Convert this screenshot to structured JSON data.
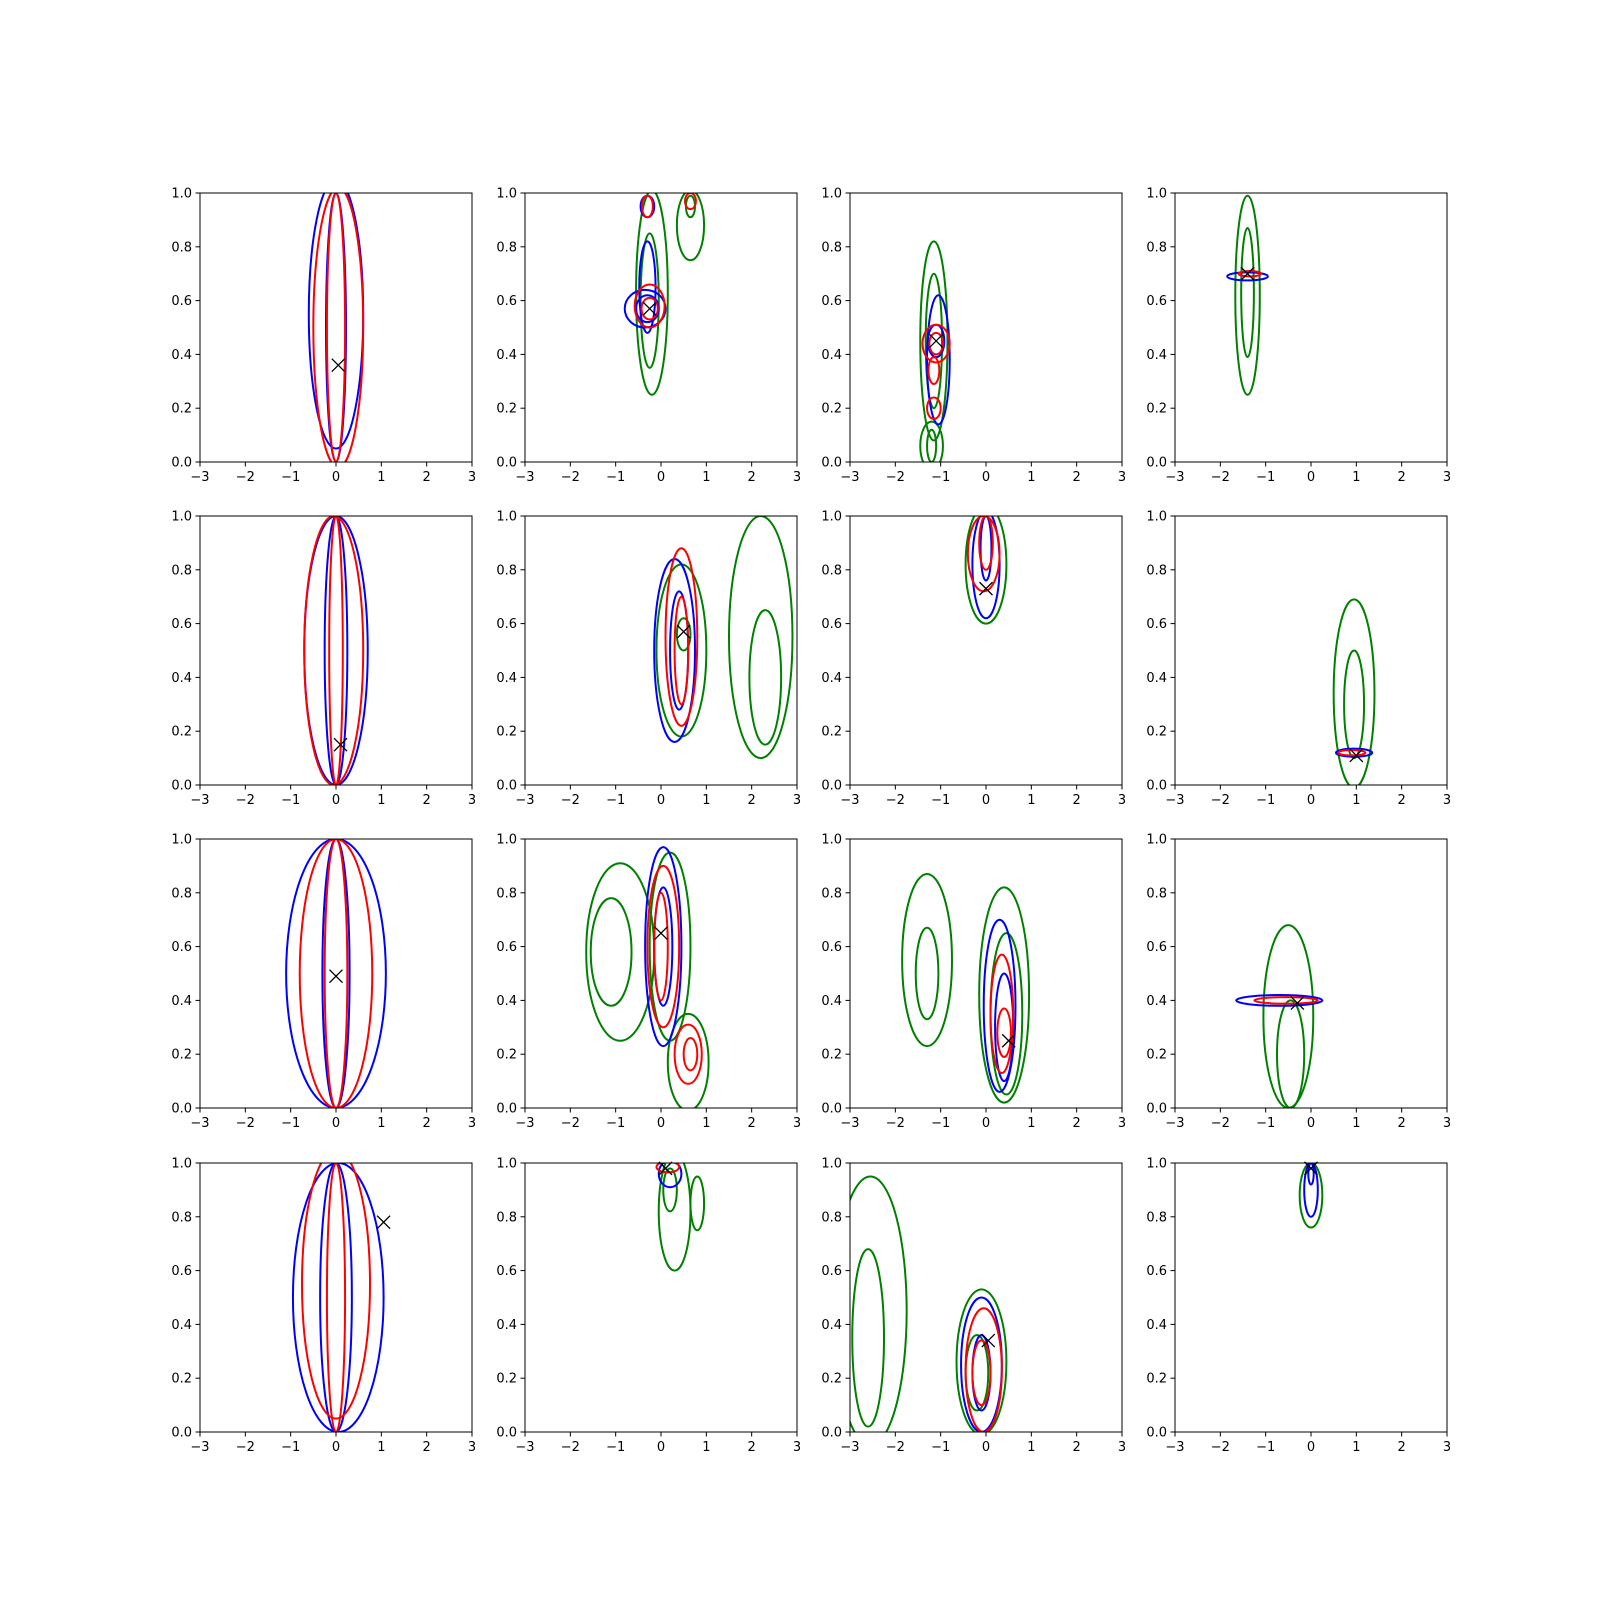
{
  "colors": {
    "blue": "#0000ff",
    "red": "#ff0000",
    "green": "#008000",
    "marker": "#000000",
    "frame": "#000000"
  },
  "chart_data": {
    "type": "contour_grid",
    "rows": 4,
    "cols": 4,
    "xlim": [
      -3,
      3
    ],
    "ylim": [
      0,
      1
    ],
    "xticks": [
      "−3",
      "−2",
      "−1",
      "0",
      "1",
      "2",
      "3"
    ],
    "yticks": [
      "0.0",
      "0.2",
      "0.4",
      "0.6",
      "0.8",
      "1.0"
    ],
    "marker_symbol": "x",
    "panels": [
      {
        "marker": [
          0.05,
          0.36
        ],
        "contours": [
          {
            "color": "blue",
            "cx": 0.0,
            "cy": 0.55,
            "rx": 0.6,
            "ry": 0.5
          },
          {
            "color": "blue",
            "cx": 0.0,
            "cy": 0.5,
            "rx": 0.22,
            "ry": 0.5
          },
          {
            "color": "red",
            "cx": 0.05,
            "cy": 0.5,
            "rx": 0.55,
            "ry": 0.52
          },
          {
            "color": "red",
            "cx": 0.0,
            "cy": 0.5,
            "rx": 0.2,
            "ry": 0.5
          }
        ]
      },
      {
        "marker": [
          -0.25,
          0.57
        ],
        "contours": [
          {
            "color": "green",
            "cx": -0.2,
            "cy": 0.63,
            "rx": 0.35,
            "ry": 0.38
          },
          {
            "color": "green",
            "cx": -0.25,
            "cy": 0.6,
            "rx": 0.2,
            "ry": 0.25
          },
          {
            "color": "green",
            "cx": 0.65,
            "cy": 0.88,
            "rx": 0.3,
            "ry": 0.13
          },
          {
            "color": "green",
            "cx": 0.65,
            "cy": 0.95,
            "rx": 0.1,
            "ry": 0.04
          },
          {
            "color": "blue",
            "cx": -0.35,
            "cy": 0.57,
            "rx": 0.45,
            "ry": 0.07
          },
          {
            "color": "blue",
            "cx": -0.3,
            "cy": 0.65,
            "rx": 0.18,
            "ry": 0.17
          },
          {
            "color": "blue",
            "cx": -0.3,
            "cy": 0.57,
            "rx": 0.25,
            "ry": 0.05
          },
          {
            "color": "blue",
            "cx": -0.3,
            "cy": 0.95,
            "rx": 0.15,
            "ry": 0.04
          },
          {
            "color": "red",
            "cx": -0.25,
            "cy": 0.58,
            "rx": 0.33,
            "ry": 0.08
          },
          {
            "color": "red",
            "cx": -0.25,
            "cy": 0.57,
            "rx": 0.18,
            "ry": 0.04
          },
          {
            "color": "red",
            "cx": -0.3,
            "cy": 0.95,
            "rx": 0.12,
            "ry": 0.04
          },
          {
            "color": "red",
            "cx": 0.65,
            "cy": 0.97,
            "rx": 0.12,
            "ry": 0.03
          }
        ]
      },
      {
        "marker": [
          -1.1,
          0.45
        ],
        "contours": [
          {
            "color": "green",
            "cx": -1.15,
            "cy": 0.45,
            "rx": 0.3,
            "ry": 0.37
          },
          {
            "color": "green",
            "cx": -1.15,
            "cy": 0.45,
            "rx": 0.18,
            "ry": 0.25
          },
          {
            "color": "green",
            "cx": -1.2,
            "cy": 0.06,
            "rx": 0.25,
            "ry": 0.09
          },
          {
            "color": "green",
            "cx": -1.2,
            "cy": 0.06,
            "rx": 0.1,
            "ry": 0.06
          },
          {
            "color": "blue",
            "cx": -1.05,
            "cy": 0.38,
            "rx": 0.25,
            "ry": 0.24
          },
          {
            "color": "blue",
            "cx": -1.1,
            "cy": 0.45,
            "rx": 0.18,
            "ry": 0.06
          },
          {
            "color": "red",
            "cx": -1.1,
            "cy": 0.44,
            "rx": 0.3,
            "ry": 0.07
          },
          {
            "color": "red",
            "cx": -1.1,
            "cy": 0.44,
            "rx": 0.15,
            "ry": 0.04
          },
          {
            "color": "red",
            "cx": -1.15,
            "cy": 0.34,
            "rx": 0.12,
            "ry": 0.05
          },
          {
            "color": "red",
            "cx": -1.15,
            "cy": 0.2,
            "rx": 0.15,
            "ry": 0.04
          }
        ]
      },
      {
        "marker": [
          -1.4,
          0.7
        ],
        "contours": [
          {
            "color": "green",
            "cx": -1.4,
            "cy": 0.62,
            "rx": 0.27,
            "ry": 0.37
          },
          {
            "color": "green",
            "cx": -1.4,
            "cy": 0.63,
            "rx": 0.14,
            "ry": 0.24
          },
          {
            "color": "blue",
            "cx": -1.4,
            "cy": 0.69,
            "rx": 0.45,
            "ry": 0.015
          },
          {
            "color": "red",
            "cx": -1.35,
            "cy": 0.7,
            "rx": 0.25,
            "ry": 0.01
          }
        ]
      },
      {
        "marker": [
          0.1,
          0.15
        ],
        "contours": [
          {
            "color": "blue",
            "cx": 0.0,
            "cy": 0.5,
            "rx": 0.7,
            "ry": 0.5
          },
          {
            "color": "blue",
            "cx": 0.0,
            "cy": 0.5,
            "rx": 0.25,
            "ry": 0.5
          },
          {
            "color": "red",
            "cx": -0.05,
            "cy": 0.5,
            "rx": 0.65,
            "ry": 0.5
          },
          {
            "color": "red",
            "cx": 0.0,
            "cy": 0.5,
            "rx": 0.15,
            "ry": 0.5
          }
        ]
      },
      {
        "marker": [
          0.5,
          0.57
        ],
        "contours": [
          {
            "color": "green",
            "cx": 0.45,
            "cy": 0.5,
            "rx": 0.55,
            "ry": 0.32
          },
          {
            "color": "green",
            "cx": 0.5,
            "cy": 0.56,
            "rx": 0.15,
            "ry": 0.06
          },
          {
            "color": "green",
            "cx": 2.2,
            "cy": 0.55,
            "rx": 0.7,
            "ry": 0.45
          },
          {
            "color": "green",
            "cx": 2.3,
            "cy": 0.4,
            "rx": 0.35,
            "ry": 0.25
          },
          {
            "color": "blue",
            "cx": 0.3,
            "cy": 0.5,
            "rx": 0.45,
            "ry": 0.34
          },
          {
            "color": "blue",
            "cx": 0.4,
            "cy": 0.5,
            "rx": 0.2,
            "ry": 0.22
          },
          {
            "color": "red",
            "cx": 0.45,
            "cy": 0.55,
            "rx": 0.35,
            "ry": 0.33
          },
          {
            "color": "red",
            "cx": 0.45,
            "cy": 0.5,
            "rx": 0.15,
            "ry": 0.2
          }
        ]
      },
      {
        "marker": [
          0.0,
          0.73
        ],
        "contours": [
          {
            "color": "green",
            "cx": 0.0,
            "cy": 0.82,
            "rx": 0.45,
            "ry": 0.22
          },
          {
            "color": "blue",
            "cx": 0.0,
            "cy": 0.82,
            "rx": 0.3,
            "ry": 0.2
          },
          {
            "color": "blue",
            "cx": 0.0,
            "cy": 0.88,
            "rx": 0.12,
            "ry": 0.12
          },
          {
            "color": "red",
            "cx": -0.05,
            "cy": 0.86,
            "rx": 0.35,
            "ry": 0.14
          },
          {
            "color": "red",
            "cx": 0.0,
            "cy": 0.9,
            "rx": 0.15,
            "ry": 0.1
          }
        ]
      },
      {
        "marker": [
          1.0,
          0.11
        ],
        "contours": [
          {
            "color": "green",
            "cx": 0.95,
            "cy": 0.34,
            "rx": 0.45,
            "ry": 0.35
          },
          {
            "color": "green",
            "cx": 0.95,
            "cy": 0.3,
            "rx": 0.22,
            "ry": 0.2
          },
          {
            "color": "blue",
            "cx": 0.95,
            "cy": 0.12,
            "rx": 0.4,
            "ry": 0.015
          },
          {
            "color": "red",
            "cx": 0.9,
            "cy": 0.12,
            "rx": 0.3,
            "ry": 0.01
          }
        ]
      },
      {
        "marker": [
          0.0,
          0.49
        ],
        "contours": [
          {
            "color": "blue",
            "cx": 0.0,
            "cy": 0.5,
            "rx": 1.1,
            "ry": 0.5
          },
          {
            "color": "blue",
            "cx": 0.0,
            "cy": 0.5,
            "rx": 0.3,
            "ry": 0.5
          },
          {
            "color": "red",
            "cx": 0.0,
            "cy": 0.5,
            "rx": 0.8,
            "ry": 0.5
          },
          {
            "color": "red",
            "cx": 0.0,
            "cy": 0.5,
            "rx": 0.25,
            "ry": 0.5
          }
        ]
      },
      {
        "marker": [
          0.0,
          0.65
        ],
        "contours": [
          {
            "color": "green",
            "cx": -0.9,
            "cy": 0.58,
            "rx": 0.75,
            "ry": 0.33
          },
          {
            "color": "green",
            "cx": -1.1,
            "cy": 0.58,
            "rx": 0.45,
            "ry": 0.2
          },
          {
            "color": "green",
            "cx": 0.2,
            "cy": 0.6,
            "rx": 0.45,
            "ry": 0.35
          },
          {
            "color": "green",
            "cx": 0.6,
            "cy": 0.17,
            "rx": 0.45,
            "ry": 0.18
          },
          {
            "color": "blue",
            "cx": 0.05,
            "cy": 0.6,
            "rx": 0.4,
            "ry": 0.37
          },
          {
            "color": "blue",
            "cx": 0.05,
            "cy": 0.6,
            "rx": 0.2,
            "ry": 0.22
          },
          {
            "color": "red",
            "cx": 0.05,
            "cy": 0.6,
            "rx": 0.35,
            "ry": 0.3
          },
          {
            "color": "red",
            "cx": 0.0,
            "cy": 0.6,
            "rx": 0.15,
            "ry": 0.2
          },
          {
            "color": "red",
            "cx": 0.6,
            "cy": 0.2,
            "rx": 0.3,
            "ry": 0.11
          },
          {
            "color": "red",
            "cx": 0.65,
            "cy": 0.2,
            "rx": 0.15,
            "ry": 0.06
          }
        ]
      },
      {
        "marker": [
          0.5,
          0.25
        ],
        "contours": [
          {
            "color": "green",
            "cx": -1.3,
            "cy": 0.55,
            "rx": 0.55,
            "ry": 0.32
          },
          {
            "color": "green",
            "cx": -1.3,
            "cy": 0.5,
            "rx": 0.25,
            "ry": 0.17
          },
          {
            "color": "green",
            "cx": 0.4,
            "cy": 0.42,
            "rx": 0.55,
            "ry": 0.4
          },
          {
            "color": "green",
            "cx": 0.45,
            "cy": 0.35,
            "rx": 0.35,
            "ry": 0.3
          },
          {
            "color": "blue",
            "cx": 0.3,
            "cy": 0.38,
            "rx": 0.35,
            "ry": 0.32
          },
          {
            "color": "blue",
            "cx": 0.4,
            "cy": 0.3,
            "rx": 0.2,
            "ry": 0.2
          },
          {
            "color": "red",
            "cx": 0.35,
            "cy": 0.35,
            "rx": 0.25,
            "ry": 0.22
          },
          {
            "color": "red",
            "cx": 0.4,
            "cy": 0.28,
            "rx": 0.15,
            "ry": 0.09
          }
        ]
      },
      {
        "marker": [
          -0.3,
          0.39
        ],
        "contours": [
          {
            "color": "green",
            "cx": -0.5,
            "cy": 0.34,
            "rx": 0.55,
            "ry": 0.34
          },
          {
            "color": "green",
            "cx": -0.45,
            "cy": 0.2,
            "rx": 0.3,
            "ry": 0.2
          },
          {
            "color": "blue",
            "cx": -0.7,
            "cy": 0.4,
            "rx": 0.95,
            "ry": 0.02
          },
          {
            "color": "red",
            "cx": -0.55,
            "cy": 0.4,
            "rx": 0.7,
            "ry": 0.012
          }
        ]
      },
      {
        "marker": [
          1.05,
          0.78
        ],
        "contours": [
          {
            "color": "blue",
            "cx": 0.05,
            "cy": 0.5,
            "rx": 1.0,
            "ry": 0.5
          },
          {
            "color": "blue",
            "cx": 0.0,
            "cy": 0.5,
            "rx": 0.35,
            "ry": 0.5
          },
          {
            "color": "red",
            "cx": 0.0,
            "cy": 0.55,
            "rx": 0.75,
            "ry": 0.5
          },
          {
            "color": "red",
            "cx": 0.0,
            "cy": 0.5,
            "rx": 0.2,
            "ry": 0.5
          }
        ]
      },
      {
        "marker": [
          0.1,
          0.98
        ],
        "contours": [
          {
            "color": "green",
            "cx": 0.3,
            "cy": 0.82,
            "rx": 0.35,
            "ry": 0.22
          },
          {
            "color": "green",
            "cx": 0.2,
            "cy": 0.9,
            "rx": 0.15,
            "ry": 0.08
          },
          {
            "color": "green",
            "cx": 0.8,
            "cy": 0.85,
            "rx": 0.15,
            "ry": 0.1
          },
          {
            "color": "blue",
            "cx": 0.2,
            "cy": 0.96,
            "rx": 0.25,
            "ry": 0.05
          },
          {
            "color": "red",
            "cx": 0.15,
            "cy": 0.985,
            "rx": 0.25,
            "ry": 0.02
          }
        ]
      },
      {
        "marker": [
          0.05,
          0.34
        ],
        "contours": [
          {
            "color": "green",
            "cx": -2.55,
            "cy": 0.45,
            "rx": 0.8,
            "ry": 0.5
          },
          {
            "color": "green",
            "cx": -2.6,
            "cy": 0.35,
            "rx": 0.35,
            "ry": 0.33
          },
          {
            "color": "green",
            "cx": -0.1,
            "cy": 0.26,
            "rx": 0.55,
            "ry": 0.27
          },
          {
            "color": "green",
            "cx": -0.2,
            "cy": 0.22,
            "rx": 0.25,
            "ry": 0.14
          },
          {
            "color": "blue",
            "cx": -0.1,
            "cy": 0.25,
            "rx": 0.45,
            "ry": 0.25
          },
          {
            "color": "blue",
            "cx": -0.1,
            "cy": 0.22,
            "rx": 0.2,
            "ry": 0.14
          },
          {
            "color": "red",
            "cx": -0.05,
            "cy": 0.23,
            "rx": 0.4,
            "ry": 0.23
          },
          {
            "color": "red",
            "cx": -0.1,
            "cy": 0.22,
            "rx": 0.2,
            "ry": 0.12
          }
        ]
      },
      {
        "marker": [
          0.0,
          0.98
        ],
        "contours": [
          {
            "color": "green",
            "cx": 0.0,
            "cy": 0.88,
            "rx": 0.25,
            "ry": 0.12
          },
          {
            "color": "blue",
            "cx": 0.0,
            "cy": 0.9,
            "rx": 0.15,
            "ry": 0.1
          },
          {
            "color": "blue",
            "cx": 0.0,
            "cy": 0.96,
            "rx": 0.06,
            "ry": 0.04
          }
        ]
      }
    ]
  }
}
